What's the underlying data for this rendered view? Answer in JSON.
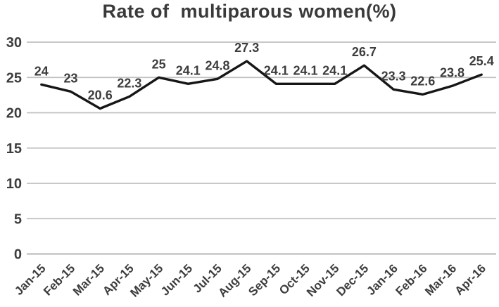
{
  "chart_data": {
    "type": "line",
    "title": "Rate of  multiparous women(%)",
    "categories": [
      "Jan-15",
      "Feb-15",
      "Mar-15",
      "Apr-15",
      "May-15",
      "Jun-15",
      "Jul-15",
      "Aug-15",
      "Sep-15",
      "Oct-15",
      "Nov-15",
      "Dec-15",
      "Jan-16",
      "Feb-16",
      "Mar-16",
      "Apr-16"
    ],
    "values": [
      24,
      23,
      20.6,
      22.3,
      25,
      24.1,
      24.8,
      27.3,
      24.1,
      24.1,
      24.1,
      26.7,
      23.3,
      22.6,
      23.8,
      25.4
    ],
    "data_labels": [
      "24",
      "23",
      "20.6",
      "22.3",
      "25",
      "24.1",
      "24.8",
      "27.3",
      "24.1",
      "24.1",
      "24.1",
      "26.7",
      "23.3",
      "22.6",
      "23.8",
      "25.4"
    ],
    "xlabel": "",
    "ylabel": "",
    "ylim": [
      0,
      30
    ],
    "yticks": [
      0,
      5,
      10,
      15,
      20,
      25,
      30
    ],
    "grid": "horizontal",
    "legend": "none",
    "show_data_labels": true,
    "x_label_rotation_deg": -45,
    "colors": {
      "line": "#161616",
      "gridline": "#c0c0c0",
      "text": "#3d3d3d",
      "background": "#ffffff"
    }
  }
}
